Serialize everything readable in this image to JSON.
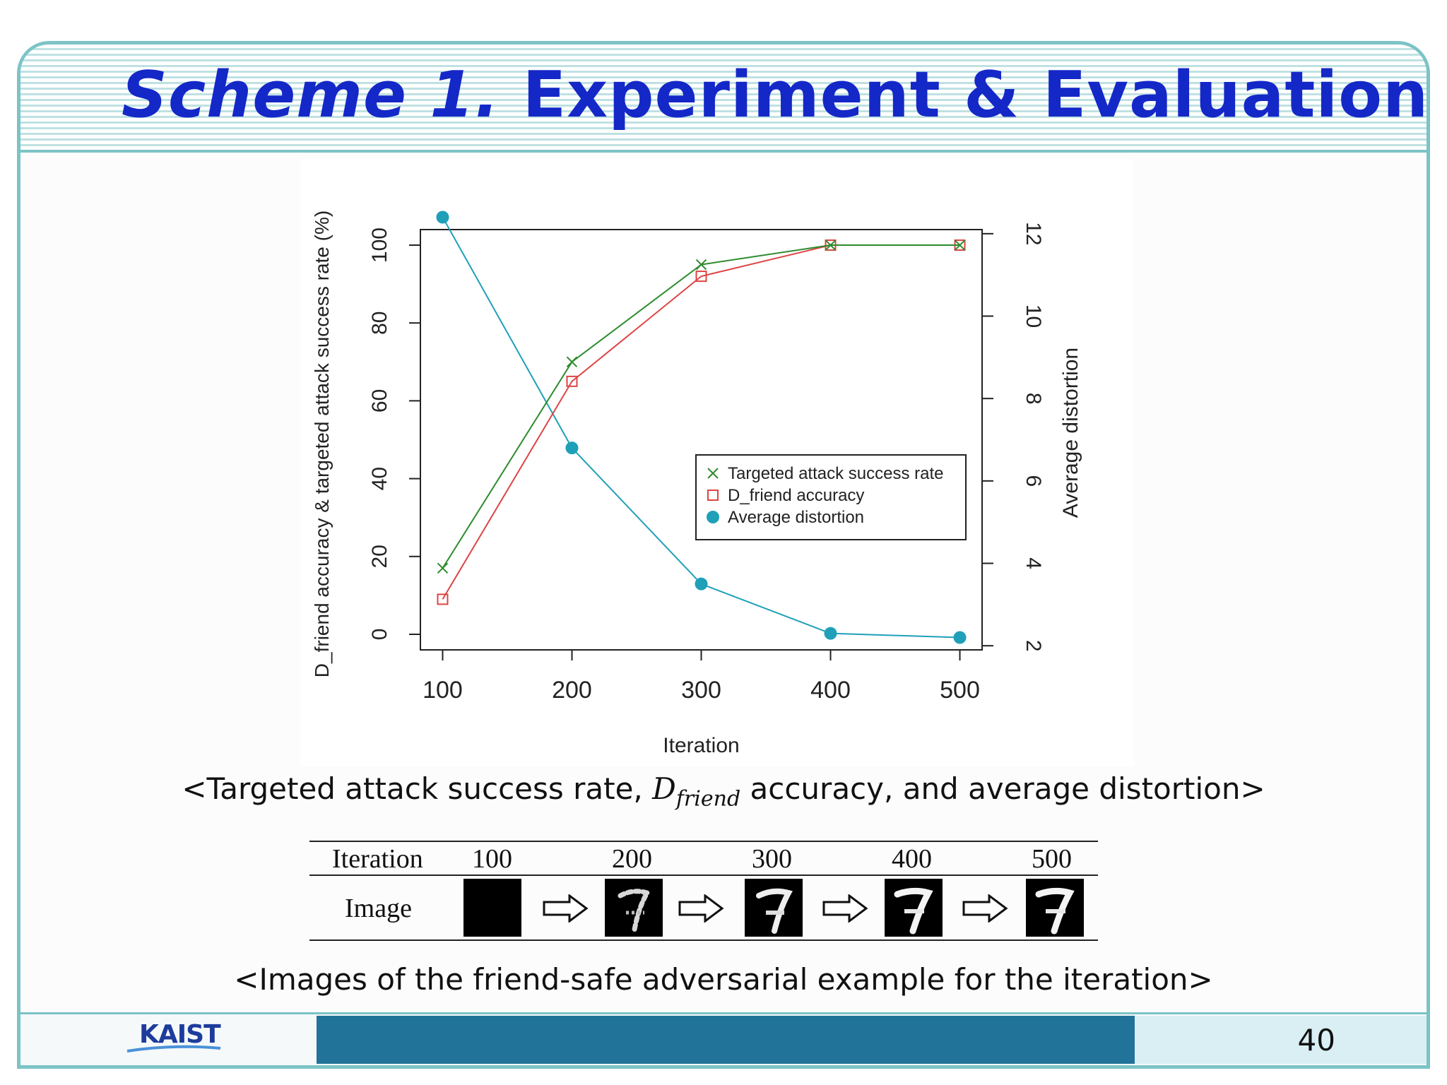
{
  "slide": {
    "title_italic": "Scheme 1.",
    "title_rest": " Experiment & Evaluation",
    "caption1_prefix": "<Targeted attack success rate, ",
    "caption1_math": "D",
    "caption1_math_sub": "friend",
    "caption1_suffix": " accuracy, and average distortion>",
    "caption2": "<Images of the friend-safe adversarial example for the iteration>",
    "page_number": "40",
    "logo_text": "KAIST"
  },
  "image_table": {
    "row1_label": "Iteration",
    "row2_label": "Image",
    "iterations": [
      "100",
      "200",
      "300",
      "400",
      "500"
    ]
  },
  "chart_data": {
    "type": "line",
    "xlabel": "Iteration",
    "ylabel_left": "D_friend accuracy & targeted attack success rate (%)",
    "ylabel_right": "Average distortion",
    "x": [
      100,
      200,
      300,
      400,
      500
    ],
    "x_ticks": [
      "100",
      "200",
      "300",
      "400",
      "500"
    ],
    "y_left_ticks": [
      "0",
      "20",
      "40",
      "60",
      "80",
      "100"
    ],
    "y_right_ticks": [
      "2",
      "4",
      "6",
      "8",
      "10",
      "12"
    ],
    "ylim_left": [
      -4,
      104
    ],
    "ylim_right": [
      1.9,
      12.1
    ],
    "legend_position": "center-right",
    "grid": false,
    "series": [
      {
        "name": "Targeted attack success rate",
        "axis": "left",
        "marker": "x",
        "color": "#2e8b2e",
        "values": [
          17,
          70,
          95,
          100,
          100
        ]
      },
      {
        "name": "D_friend accuracy",
        "axis": "left",
        "marker": "square",
        "color": "#dd4444",
        "values": [
          9,
          65,
          92,
          100,
          100
        ]
      },
      {
        "name": "Average distortion",
        "axis": "right",
        "marker": "circle",
        "color": "#1fa0b8",
        "values": [
          12.4,
          6.8,
          3.5,
          2.3,
          2.2
        ]
      }
    ]
  }
}
